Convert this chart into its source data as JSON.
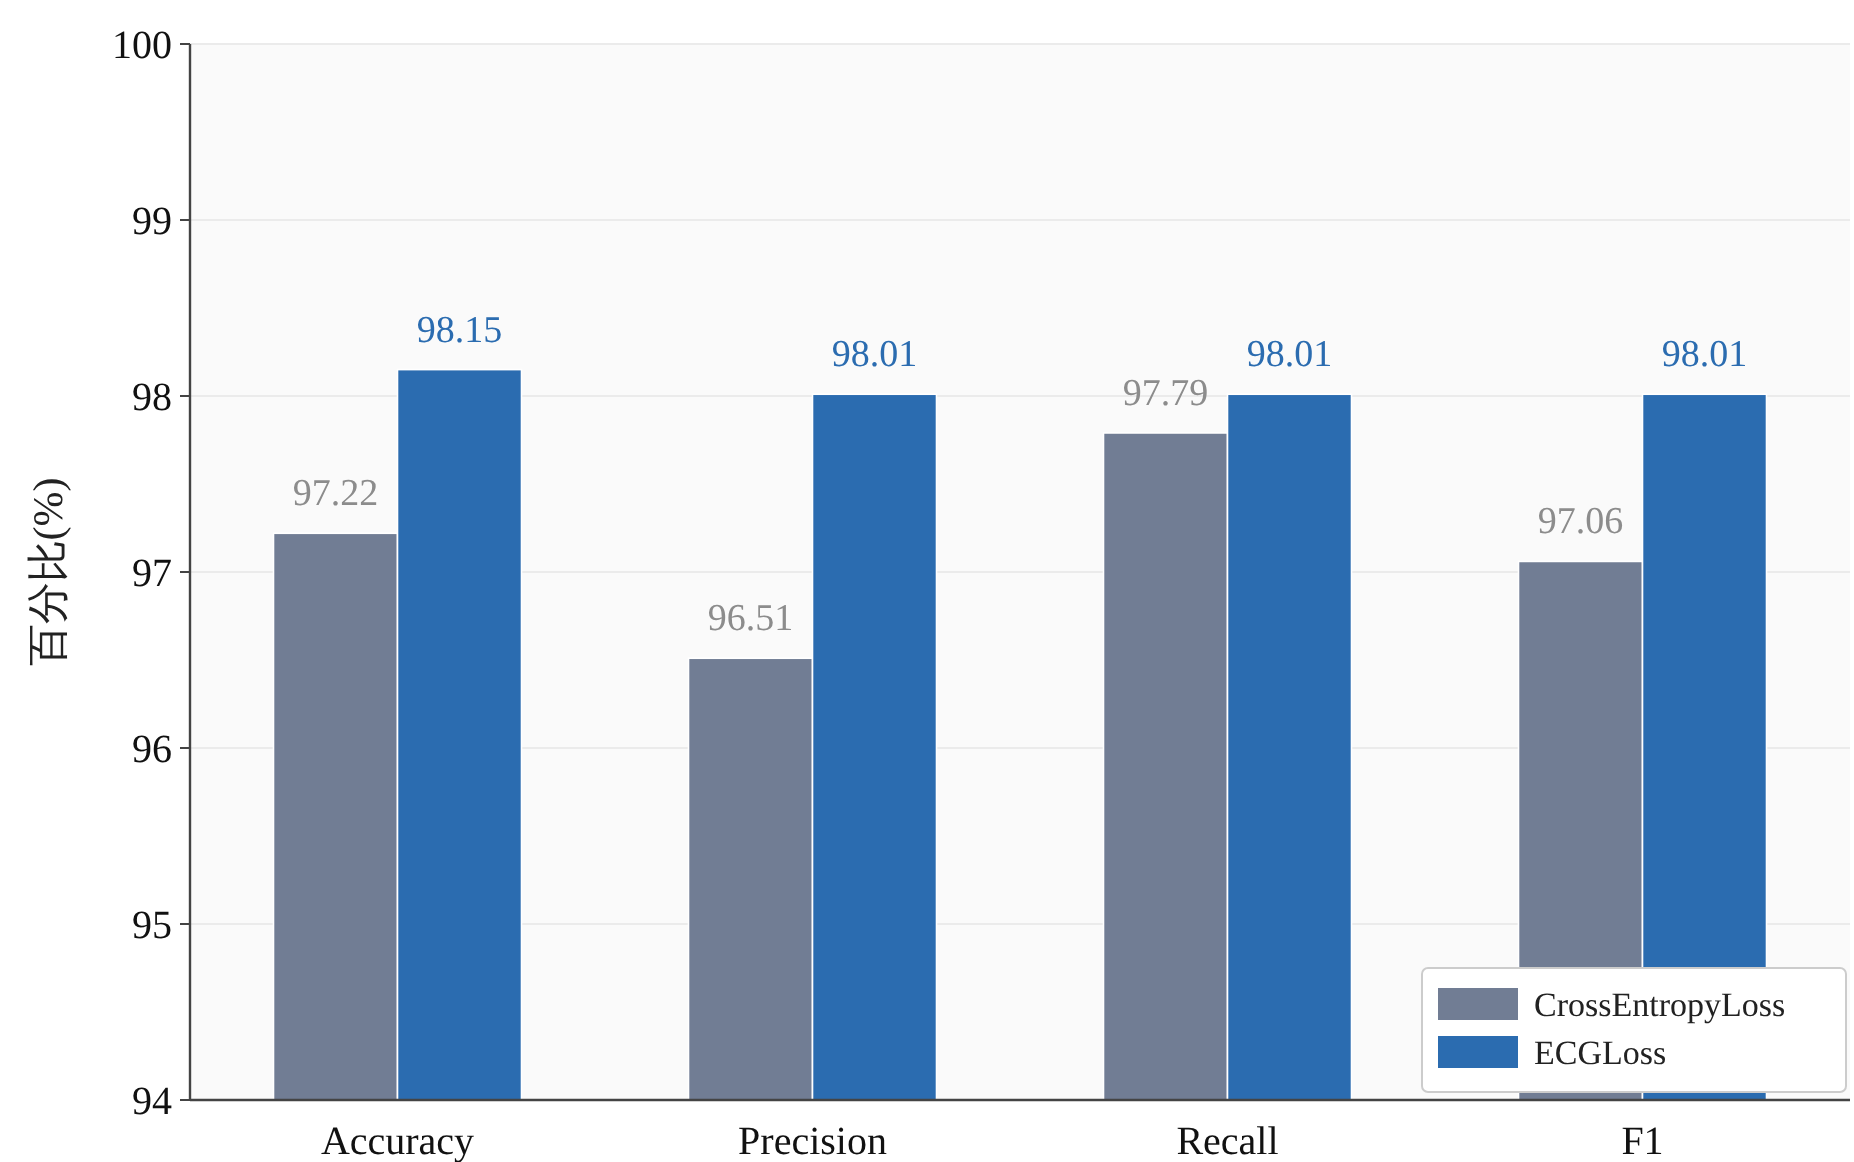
{
  "chart_data": {
    "type": "bar",
    "ylabel": "百分比(%)",
    "categories": [
      "Accuracy",
      "Precision",
      "Recall",
      "F1"
    ],
    "series": [
      {
        "name": "CrossEntropyLoss",
        "color": "#717d94",
        "values": [
          97.22,
          96.51,
          97.79,
          97.06
        ]
      },
      {
        "name": "ECGLoss",
        "color": "#2b6cb0",
        "values": [
          98.15,
          98.01,
          98.01,
          98.01
        ]
      }
    ],
    "ylim": [
      94,
      100
    ],
    "yticks": [
      94,
      95,
      96,
      97,
      98,
      99,
      100
    ],
    "grid": "y",
    "legend": "bottom right",
    "data_labels": true
  }
}
